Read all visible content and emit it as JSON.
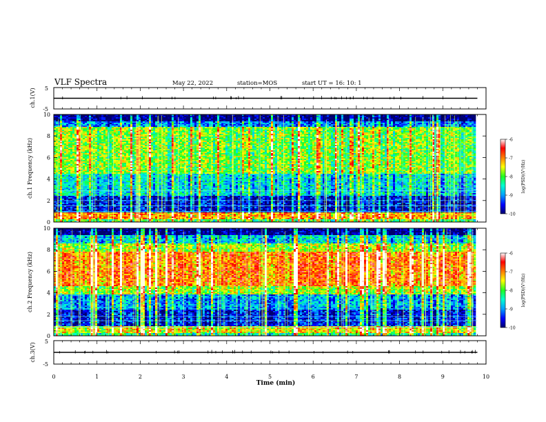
{
  "header": {
    "title": "VLF Spectra",
    "date": "May 22, 2022",
    "station": "station=MOS",
    "start": "start  UT =  16: 10: 1"
  },
  "colors": {
    "colormap": [
      "#00006e",
      "#0000ff",
      "#00a0ff",
      "#00ffd0",
      "#20ff20",
      "#ffff00",
      "#ff8000",
      "#ff0000",
      "#ffffff"
    ],
    "trace": "#000000"
  },
  "chart_data": [
    {
      "type": "line",
      "id": "ch1-volt",
      "ylabel": "ch.1(V)",
      "ylim": [
        -5,
        5
      ],
      "yticks": [
        "5",
        "-5"
      ],
      "xlim": [
        0,
        10
      ],
      "series": [
        {
          "values_description_constant": 0.0
        }
      ]
    },
    {
      "type": "heatmap",
      "id": "ch1-spec",
      "ylabel": "ch.1\nFrequency (kHz)",
      "ylim": [
        0,
        10
      ],
      "yticks": [
        "0",
        "2",
        "4",
        "6",
        "8",
        "10"
      ],
      "xlim": [
        0,
        9.8
      ],
      "colorbar": {
        "label": "log(PSD)(V²/Hz)",
        "ticks": [
          "-6",
          "-7",
          "-8",
          "-9",
          "-10"
        ],
        "range": [
          -10,
          -6
        ]
      },
      "bands": [
        {
          "f": [
            0.0,
            0.3
          ],
          "level": -8.0
        },
        {
          "f": [
            0.3,
            0.9
          ],
          "level": -7.0
        },
        {
          "f": [
            0.9,
            2.5
          ],
          "level": -9.5
        },
        {
          "f": [
            2.5,
            4.5
          ],
          "level": -8.6
        },
        {
          "f": [
            4.5,
            8.8
          ],
          "level": -7.8
        },
        {
          "f": [
            8.8,
            9.4
          ],
          "level": -9.0
        },
        {
          "f": [
            9.4,
            10.0
          ],
          "level": -9.9
        }
      ],
      "lines_kHz": [
        1.0,
        1.5,
        2.0,
        2.9
      ]
    },
    {
      "type": "heatmap",
      "id": "ch2-spec",
      "ylabel": "ch.2\nFrequency (kHz)",
      "ylim": [
        0,
        10
      ],
      "yticks": [
        "0",
        "2",
        "4",
        "6",
        "8",
        "10"
      ],
      "xlim": [
        0,
        9.8
      ],
      "colorbar": {
        "label": "log(PSD)(V²/Hz)",
        "ticks": [
          "-6",
          "-7",
          "-8",
          "-9",
          "-10"
        ],
        "range": [
          -10,
          -6
        ]
      },
      "bands": [
        {
          "f": [
            0.0,
            0.3
          ],
          "level": -8.2
        },
        {
          "f": [
            0.3,
            0.9
          ],
          "level": -7.3
        },
        {
          "f": [
            0.9,
            2.4
          ],
          "level": -9.4
        },
        {
          "f": [
            2.4,
            3.8
          ],
          "level": -8.8
        },
        {
          "f": [
            3.8,
            4.6
          ],
          "level": -7.6
        },
        {
          "f": [
            4.6,
            7.8
          ],
          "level": -6.8
        },
        {
          "f": [
            7.8,
            8.6
          ],
          "level": -7.6
        },
        {
          "f": [
            8.6,
            9.3
          ],
          "level": -8.6
        },
        {
          "f": [
            9.3,
            10.0
          ],
          "level": -9.8
        }
      ],
      "lines_kHz": [
        0.8,
        1.4,
        1.8
      ]
    },
    {
      "type": "line",
      "id": "ch3-volt",
      "ylabel": "ch.3(V)",
      "ylim": [
        -5,
        5
      ],
      "yticks": [
        "5",
        "-5"
      ],
      "xlim": [
        0,
        10
      ],
      "series": [
        {
          "values_description_constant": 0.0
        }
      ]
    }
  ],
  "xaxis": {
    "label": "Time (min)",
    "range": [
      0,
      10
    ],
    "ticks": [
      "0",
      "1",
      "2",
      "3",
      "4",
      "5",
      "6",
      "7",
      "8",
      "9",
      "10"
    ]
  }
}
